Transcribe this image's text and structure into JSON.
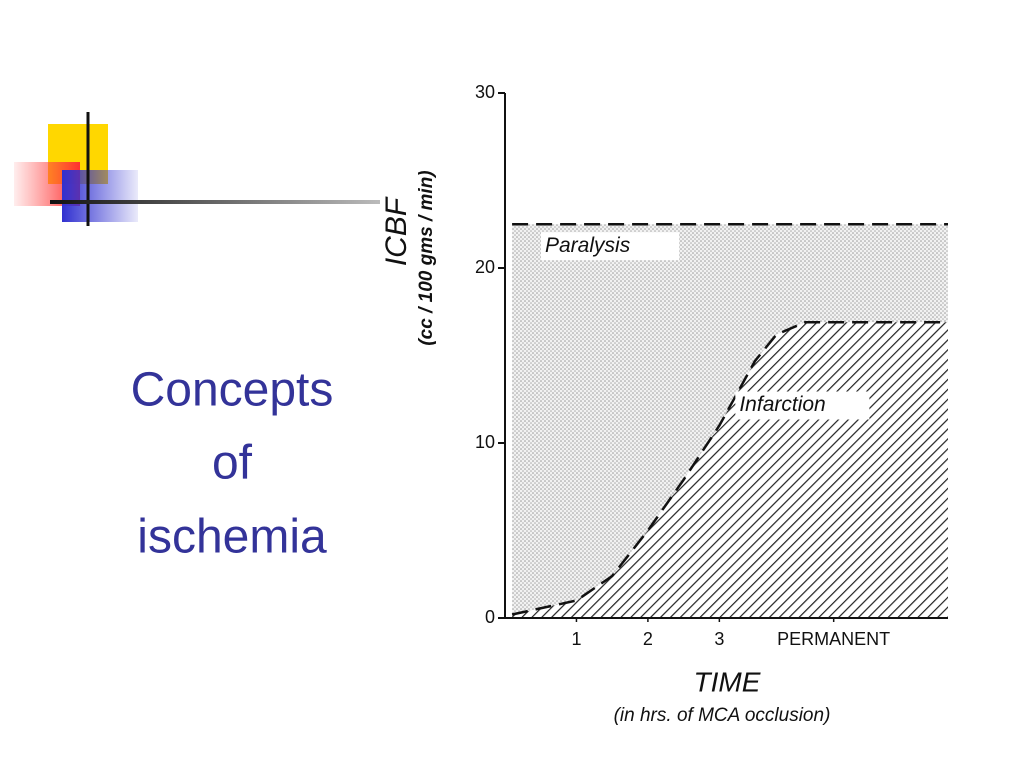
{
  "slide_title": [
    "Concepts",
    "of",
    "ischemia"
  ],
  "chart_data": {
    "type": "area",
    "y_label": "ICBF",
    "y_sublabel": "(cc / 100 gms / min)",
    "x_label": "TIME",
    "x_sublabel": "(in hrs. of MCA occlusion)",
    "x": [
      0.1,
      1,
      1.5,
      2,
      2.5,
      3,
      3.5,
      3.8,
      4.2,
      6.2
    ],
    "series": [
      {
        "name": "Paralysis",
        "color": "#c8c8c8",
        "values": [
          22.5,
          22.5,
          22.5,
          22.5,
          22.5,
          22.5,
          22.5,
          22.5,
          22.5,
          22.5
        ]
      },
      {
        "name": "Infarction",
        "color": "#222222",
        "values": [
          0.2,
          1,
          2.4,
          5,
          7.9,
          11,
          14.7,
          16.2,
          16.9,
          16.9
        ]
      }
    ],
    "xlim": [
      0,
      6.2
    ],
    "ylim": [
      0,
      30
    ],
    "xticks": [
      1,
      2,
      3,
      {
        "value": 4.6,
        "label": "PERMANENT"
      }
    ],
    "yticks": [
      0,
      10,
      20,
      30
    ]
  }
}
